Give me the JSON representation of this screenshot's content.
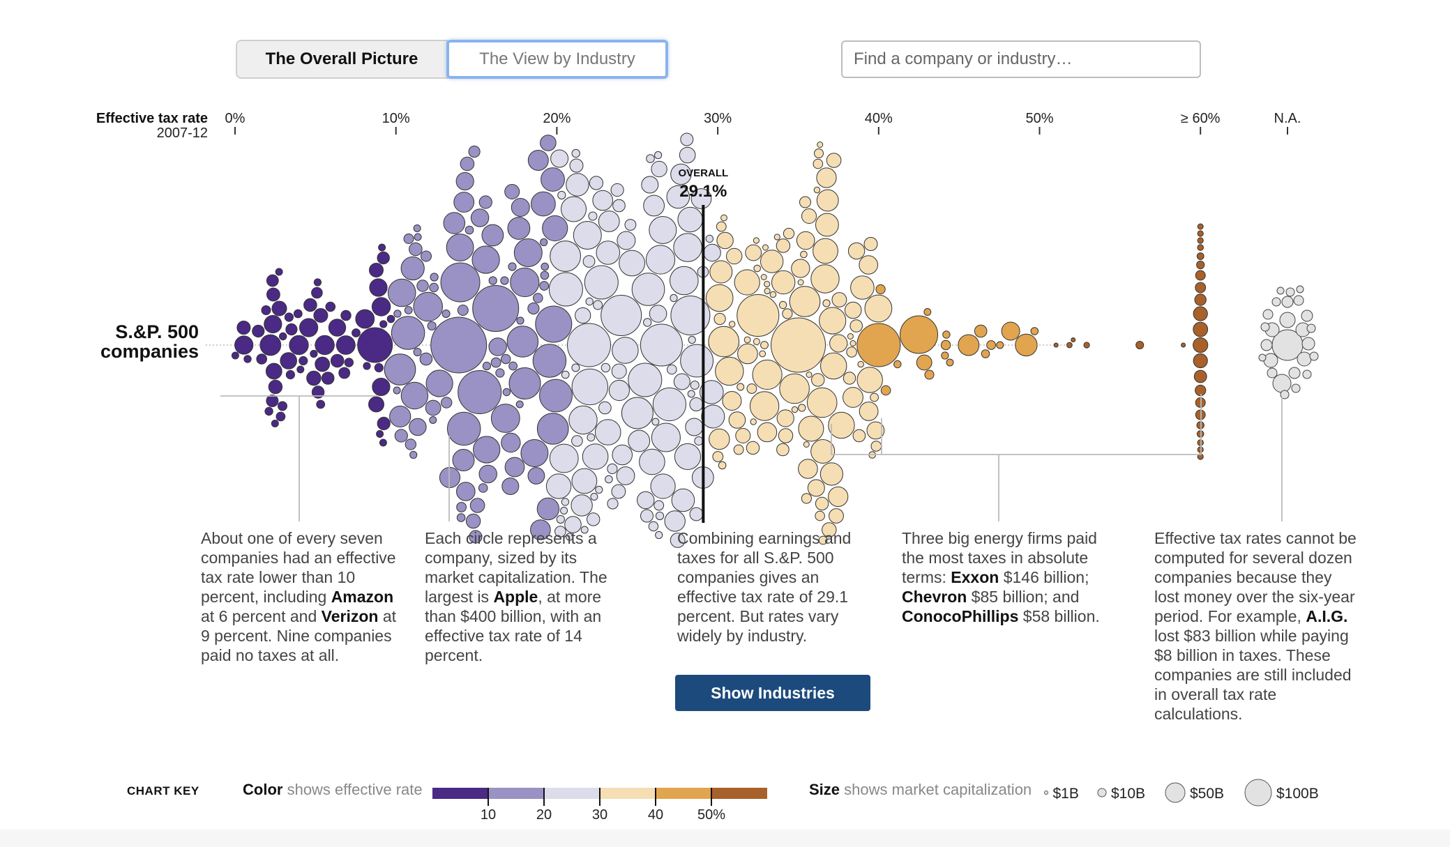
{
  "tabs": [
    {
      "label": "The Overall Picture",
      "active": true
    },
    {
      "label": "The View by Industry",
      "active": false
    }
  ],
  "search": {
    "placeholder": "Find a company or industry…"
  },
  "chart_data": {
    "type": "scatter",
    "subtype": "beeswarm",
    "xlabel": "Effective tax rate",
    "xlabel_sub": "2007-12",
    "x_ticks": [
      "0%",
      "10%",
      "20%",
      "30%",
      "40%",
      "50%",
      "≥ 60%",
      "N.A."
    ],
    "xlim": [
      0,
      60
    ],
    "row_label": "S.&P. 500 companies",
    "overall": {
      "label": "OVERALL",
      "value_label": "29.1%",
      "value": 29.1
    },
    "color_scale": {
      "title": "Color",
      "description": "shows effective rate",
      "breaks": [
        10,
        20,
        30,
        40,
        50
      ],
      "tick_labels": [
        "10",
        "20",
        "30",
        "40",
        "50%"
      ],
      "colors": [
        "#4a2a84",
        "#9a91c4",
        "#dcdcea",
        "#f5deb3",
        "#e1a44f",
        "#a8612a"
      ]
    },
    "size_scale": {
      "title": "Size",
      "description": "shows market capitalization",
      "items": [
        {
          "label": "$1B",
          "value": 1
        },
        {
          "label": "$10B",
          "value": 10
        },
        {
          "label": "$50B",
          "value": 50
        },
        {
          "label": "$100B",
          "value": 100
        }
      ]
    },
    "highlighted": [
      {
        "name": "Amazon",
        "rate": 6
      },
      {
        "name": "Verizon",
        "rate": 9
      },
      {
        "name": "Apple",
        "rate": 14,
        "market_cap_billion": 400
      },
      {
        "name": "Exxon",
        "taxes_billion": 146
      },
      {
        "name": "Chevron",
        "taxes_billion": 85
      },
      {
        "name": "ConocoPhillips",
        "taxes_billion": 58
      },
      {
        "name": "A.I.G.",
        "loss_billion": 83,
        "taxes_billion": 8
      }
    ]
  },
  "annotations": [
    {
      "segments": [
        {
          "t": "About one of every seven companies had an effective tax rate lower than 10 percent, including "
        },
        {
          "t": "Amazon",
          "b": true
        },
        {
          "t": " at 6 percent and "
        },
        {
          "t": "Verizon",
          "b": true
        },
        {
          "t": " at 9 percent. Nine companies paid no taxes at all."
        }
      ]
    },
    {
      "segments": [
        {
          "t": "Each circle represents a company, sized by its market capitalization. The largest is "
        },
        {
          "t": "Apple",
          "b": true
        },
        {
          "t": ", at more than $400 billion, with an effective tax rate of 14 percent."
        }
      ]
    },
    {
      "segments": [
        {
          "t": "Combining earnings and taxes for all S.&P. 500 companies gives an effective tax rate of 29.1 percent. But rates vary widely by industry."
        }
      ]
    },
    {
      "segments": [
        {
          "t": "Three big energy firms paid the most taxes in absolute terms: "
        },
        {
          "t": "Exxon",
          "b": true
        },
        {
          "t": " $146 billion; "
        },
        {
          "t": "Chevron",
          "b": true
        },
        {
          "t": " $85 billion; and "
        },
        {
          "t": "ConocoPhillips",
          "b": true
        },
        {
          "t": " $58 billion."
        }
      ]
    },
    {
      "segments": [
        {
          "t": "Effective tax rates cannot be computed for several dozen companies because they lost money over the six-year period. For example, "
        },
        {
          "t": "A.I.G.",
          "b": true
        },
        {
          "t": " lost $83 billion while paying $8 billion in taxes. These companies are still included in overall tax rate calculations."
        }
      ]
    }
  ],
  "show_industries_button": "Show Industries",
  "chart_key": {
    "title": "CHART KEY"
  }
}
